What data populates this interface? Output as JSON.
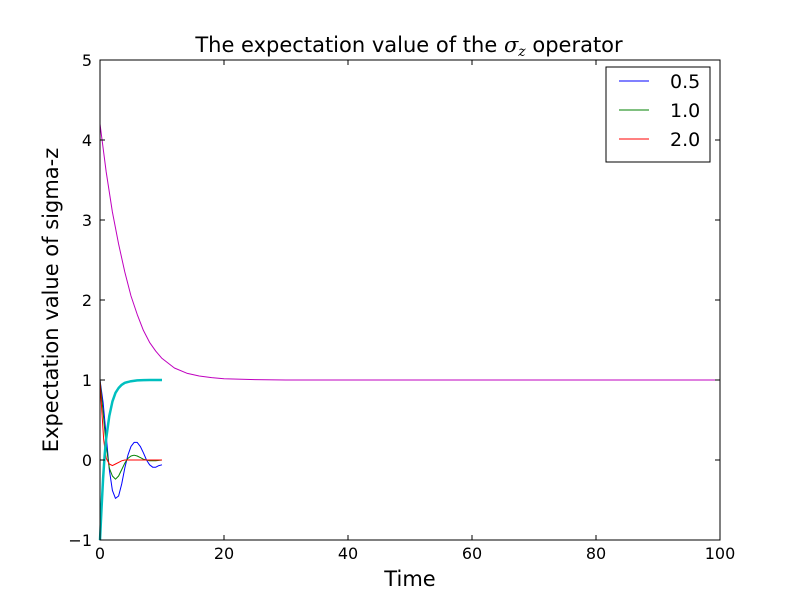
{
  "chart_data": {
    "type": "line",
    "title_prefix": "The expectation value of the ",
    "title_symbol": "σ",
    "title_subscript": "z",
    "title_suffix": " operator",
    "xlabel": "Time",
    "ylabel": "Expectation value of sigma-z",
    "xlim": [
      0,
      100
    ],
    "ylim": [
      -1,
      5
    ],
    "xticks": [
      0,
      20,
      40,
      60,
      80,
      100
    ],
    "yticks": [
      -1,
      0,
      1,
      2,
      3,
      4,
      5
    ],
    "xtick_labels": [
      "0",
      "20",
      "40",
      "60",
      "80",
      "100"
    ],
    "ytick_labels": [
      "−1",
      "0",
      "1",
      "2",
      "3",
      "4",
      "5"
    ],
    "grid": false,
    "legend": {
      "placement": "top-right",
      "entries": [
        "0.5",
        "1.0",
        "2.0"
      ]
    },
    "series": [
      {
        "name": "0.5",
        "color": "#0000ff",
        "width": 1,
        "points": [
          [
            0,
            1
          ],
          [
            0.5,
            0.72
          ],
          [
            1,
            0.3
          ],
          [
            1.5,
            -0.12
          ],
          [
            2,
            -0.38
          ],
          [
            2.5,
            -0.48
          ],
          [
            3,
            -0.45
          ],
          [
            3.5,
            -0.3
          ],
          [
            4,
            -0.1
          ],
          [
            4.5,
            0.06
          ],
          [
            5,
            0.17
          ],
          [
            5.5,
            0.22
          ],
          [
            6,
            0.22
          ],
          [
            6.5,
            0.17
          ],
          [
            7,
            0.09
          ],
          [
            7.5,
            0.0
          ],
          [
            8,
            -0.06
          ],
          [
            8.5,
            -0.09
          ],
          [
            9,
            -0.09
          ],
          [
            9.5,
            -0.07
          ],
          [
            10,
            -0.06
          ]
        ]
      },
      {
        "name": "1.0",
        "color": "#008000",
        "width": 1,
        "points": [
          [
            0,
            1
          ],
          [
            0.5,
            0.6
          ],
          [
            1,
            0.18
          ],
          [
            1.5,
            -0.1
          ],
          [
            2,
            -0.2
          ],
          [
            2.5,
            -0.24
          ],
          [
            3,
            -0.2
          ],
          [
            3.5,
            -0.12
          ],
          [
            4,
            -0.04
          ],
          [
            4.5,
            0.02
          ],
          [
            5,
            0.05
          ],
          [
            5.5,
            0.06
          ],
          [
            6,
            0.05
          ],
          [
            6.5,
            0.03
          ],
          [
            7,
            0.01
          ],
          [
            7.5,
            0.0
          ],
          [
            8,
            -0.01
          ],
          [
            9,
            -0.01
          ],
          [
            10,
            0.0
          ]
        ]
      },
      {
        "name": "2.0",
        "color": "#ff0000",
        "width": 1,
        "points": [
          [
            0,
            1
          ],
          [
            0.3,
            0.6
          ],
          [
            0.6,
            0.25
          ],
          [
            1,
            0.02
          ],
          [
            1.5,
            -0.05
          ],
          [
            2,
            -0.07
          ],
          [
            2.5,
            -0.05
          ],
          [
            3,
            -0.03
          ],
          [
            3.5,
            -0.01
          ],
          [
            4,
            0.0
          ],
          [
            5,
            0.0
          ],
          [
            6,
            0.0
          ],
          [
            10,
            0.0
          ]
        ]
      },
      {
        "name": "",
        "color": "#00bfbf",
        "width": 2.5,
        "points": [
          [
            0,
            -1
          ],
          [
            0.25,
            -0.6
          ],
          [
            0.5,
            -0.23
          ],
          [
            0.75,
            0.06
          ],
          [
            1,
            0.27
          ],
          [
            1.5,
            0.55
          ],
          [
            2,
            0.73
          ],
          [
            2.5,
            0.84
          ],
          [
            3,
            0.9
          ],
          [
            3.5,
            0.94
          ],
          [
            4,
            0.965
          ],
          [
            5,
            0.985
          ],
          [
            6,
            0.995
          ],
          [
            7,
            0.998
          ],
          [
            8,
            1.0
          ],
          [
            10,
            1.0
          ]
        ]
      },
      {
        "name": "",
        "color": "#bf00bf",
        "width": 1,
        "points": [
          [
            0,
            4.2
          ],
          [
            1,
            3.6
          ],
          [
            2,
            3.1
          ],
          [
            3,
            2.7
          ],
          [
            4,
            2.35
          ],
          [
            5,
            2.05
          ],
          [
            6,
            1.82
          ],
          [
            7,
            1.62
          ],
          [
            8,
            1.47
          ],
          [
            9,
            1.36
          ],
          [
            10,
            1.27
          ],
          [
            12,
            1.15
          ],
          [
            14,
            1.085
          ],
          [
            16,
            1.05
          ],
          [
            18,
            1.03
          ],
          [
            20,
            1.015
          ],
          [
            25,
            1.004
          ],
          [
            30,
            1.0
          ],
          [
            40,
            1.0
          ],
          [
            60,
            1.0
          ],
          [
            80,
            1.0
          ],
          [
            100,
            1.0
          ]
        ]
      }
    ]
  }
}
